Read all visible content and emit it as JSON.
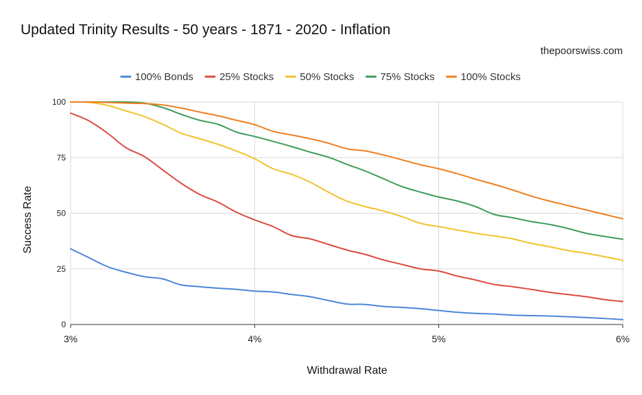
{
  "header": {
    "title": "Updated Trinity Results - 50 years - 1871 - 2020 - Inflation",
    "source": "thepoorswiss.com"
  },
  "chart_data": {
    "type": "line",
    "title": "Updated Trinity Results - 50 years - 1871 - 2020 - Inflation",
    "xlabel": "Withdrawal Rate",
    "ylabel": "Success Rate",
    "xlim": [
      3,
      6
    ],
    "ylim": [
      0,
      100
    ],
    "x_ticks": [
      {
        "value": 3,
        "label": "3%"
      },
      {
        "value": 4,
        "label": "4%"
      },
      {
        "value": 5,
        "label": "5%"
      },
      {
        "value": 6,
        "label": "6%"
      }
    ],
    "y_ticks": [
      {
        "value": 0,
        "label": "0"
      },
      {
        "value": 25,
        "label": "25"
      },
      {
        "value": 50,
        "label": "50"
      },
      {
        "value": 75,
        "label": "75"
      },
      {
        "value": 100,
        "label": "100"
      }
    ],
    "grid": true,
    "legend_position": "top",
    "x": [
      3.0,
      3.1,
      3.2,
      3.3,
      3.4,
      3.5,
      3.6,
      3.7,
      3.8,
      3.9,
      4.0,
      4.1,
      4.2,
      4.3,
      4.4,
      4.5,
      4.6,
      4.7,
      4.8,
      4.9,
      5.0,
      5.1,
      5.2,
      5.3,
      5.4,
      5.5,
      5.6,
      5.7,
      5.8,
      5.9,
      6.0
    ],
    "series": [
      {
        "name": "100% Bonds",
        "color": "#4a86d8",
        "values": [
          34,
          30,
          26,
          23.5,
          21.5,
          20.5,
          17.8,
          17,
          16.3,
          15.8,
          15,
          14.6,
          13.5,
          12.5,
          10.8,
          9.2,
          9,
          8.1,
          7.7,
          7.1,
          6.3,
          5.5,
          5,
          4.7,
          4.2,
          4,
          3.8,
          3.5,
          3.1,
          2.7,
          2.2
        ]
      },
      {
        "name": "25% Stocks",
        "color": "#dc4a3e",
        "values": [
          95,
          91.5,
          86,
          79.5,
          75.5,
          69.5,
          63.5,
          58.5,
          55,
          50.5,
          47,
          44,
          40,
          38.5,
          36,
          33.5,
          31.5,
          29,
          27,
          25,
          24,
          21.8,
          20,
          18,
          17,
          15.8,
          14.5,
          13.5,
          12.5,
          11.2,
          10.3
        ]
      },
      {
        "name": "50% Stocks",
        "color": "#f3c12b",
        "values": [
          100,
          99.8,
          98.5,
          96,
          93.5,
          90,
          86,
          83.5,
          81,
          78,
          74.5,
          70,
          67.5,
          64,
          59.5,
          55.5,
          53,
          51,
          48.5,
          45.5,
          44,
          42.5,
          41,
          39.8,
          38.5,
          36.5,
          35,
          33.3,
          32,
          30.5,
          28.8
        ]
      },
      {
        "name": "75% Stocks",
        "color": "#3e9b59",
        "values": [
          100,
          100,
          100,
          100,
          99.5,
          97.5,
          94.5,
          91.8,
          90,
          86.5,
          84.5,
          82.3,
          80,
          77.5,
          75.2,
          72,
          69,
          65.5,
          62,
          59.5,
          57.3,
          55.5,
          53,
          49.5,
          48,
          46.3,
          45,
          43.2,
          41,
          39.6,
          38.3
        ]
      },
      {
        "name": "100% Stocks",
        "color": "#ef7f1f",
        "values": [
          100,
          100,
          99.8,
          99.5,
          99.3,
          98.7,
          97.3,
          95.5,
          93.8,
          91.8,
          89.8,
          86.8,
          85.2,
          83.5,
          81.5,
          79,
          78,
          76.2,
          74,
          71.8,
          70,
          67.8,
          65.3,
          63,
          60.5,
          57.8,
          55.5,
          53.5,
          51.5,
          49.5,
          47.5
        ]
      }
    ]
  }
}
